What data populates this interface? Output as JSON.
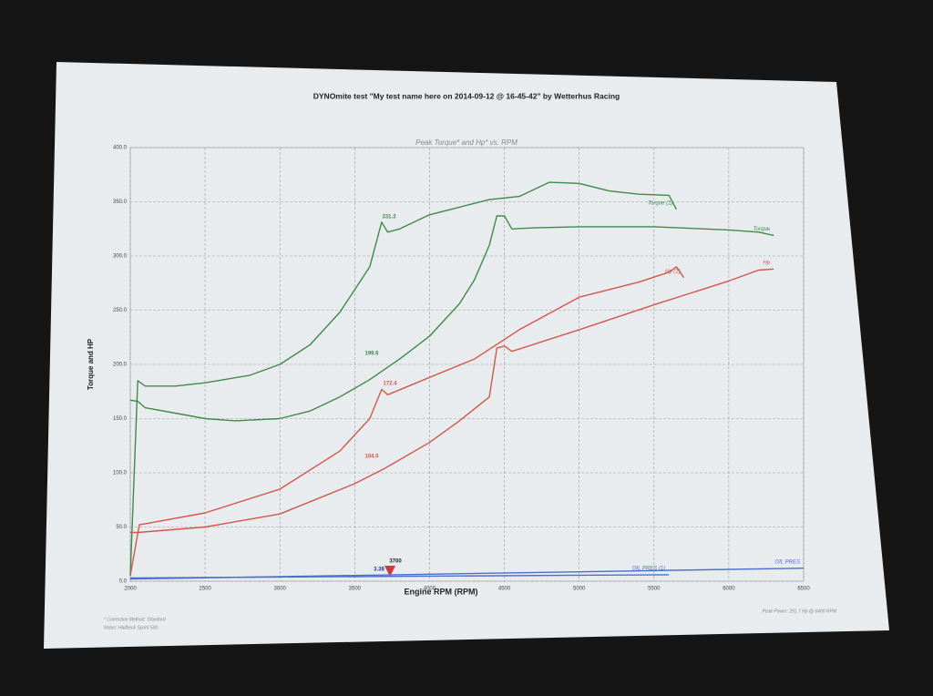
{
  "chart_data": {
    "type": "line",
    "title": "DYNOmite test \"My test name here on 2014-09-12 @ 16-45-42\" by Wetterhus Racing",
    "subtitle": "Peak Torque* and Hp* vs. RPM",
    "x_label": "Engine RPM (RPM)",
    "y_label": "Torque and HP",
    "xlim": [
      2000,
      6500
    ],
    "xticks": [
      2000,
      2500,
      3000,
      3500,
      4000,
      4500,
      5000,
      5500,
      6000,
      6500
    ],
    "ylim": [
      0,
      400
    ],
    "yticks": [
      {
        "value": 0,
        "label": "0.0"
      },
      {
        "value": 50,
        "label": "50.0"
      },
      {
        "value": 100,
        "label": "100.0"
      },
      {
        "value": 150,
        "label": "150.0"
      },
      {
        "value": 200,
        "label": "200.0"
      },
      {
        "value": 250,
        "label": "250.0"
      },
      {
        "value": 300,
        "label": "300.0"
      },
      {
        "value": 350,
        "label": "350.0"
      },
      {
        "value": 400,
        "label": "400.0"
      }
    ],
    "grid": true,
    "series": [
      {
        "name": "Torque (1)",
        "color": "#3f8a4a",
        "x": [
          2000,
          2050,
          2100,
          2300,
          2500,
          2800,
          3000,
          3200,
          3400,
          3600,
          3680,
          3720,
          3800,
          4000,
          4200,
          4400,
          4600,
          4800,
          5000,
          5200,
          5400,
          5600,
          5650
        ],
        "values": [
          5,
          185,
          180,
          180,
          183,
          190,
          200,
          218,
          248,
          290,
          331.3,
          322,
          325,
          338,
          345,
          352,
          355,
          368,
          367,
          360,
          357,
          356,
          343
        ]
      },
      {
        "name": "Torque",
        "color": "#3f8a4a",
        "x": [
          2000,
          2050,
          2100,
          2300,
          2500,
          2700,
          3000,
          3200,
          3400,
          3600,
          3800,
          4000,
          4200,
          4300,
          4400,
          4450,
          4500,
          4550,
          4700,
          5000,
          5500,
          6000,
          6200,
          6300
        ],
        "values": [
          167,
          166,
          160,
          155,
          150,
          148,
          150,
          157,
          170,
          186,
          205,
          226,
          256,
          278,
          310,
          337,
          337,
          325,
          326,
          327,
          327,
          324,
          322,
          319
        ]
      },
      {
        "name": "Hp (1)",
        "color": "#d2574a",
        "x": [
          2000,
          2060,
          2100,
          2500,
          3000,
          3400,
          3600,
          3680,
          3720,
          4000,
          4300,
          4600,
          5000,
          5400,
          5600,
          5650,
          5700
        ],
        "values": [
          5,
          52,
          53,
          63,
          85,
          120,
          150,
          177,
          172,
          188,
          205,
          232,
          262,
          276,
          285,
          290,
          280
        ]
      },
      {
        "name": "Hp",
        "color": "#d2574a",
        "x": [
          2000,
          2050,
          2500,
          3000,
          3500,
          3700,
          4000,
          4200,
          4400,
          4450,
          4500,
          4550,
          5000,
          5500,
          6000,
          6200,
          6300
        ],
        "values": [
          45,
          45,
          50,
          62,
          90,
          104,
          128,
          148,
          170,
          215,
          217,
          212,
          232,
          255,
          277,
          287,
          288
        ]
      },
      {
        "name": "OIL PRES (1)",
        "color": "#4a6fd0",
        "x": [
          2000,
          5600
        ],
        "values": [
          3,
          6
        ]
      },
      {
        "name": "OIL PRES",
        "color": "#4a6fd0",
        "x": [
          2000,
          6500
        ],
        "values": [
          2,
          12
        ]
      }
    ],
    "annotations": [
      "331.3",
      "199.6",
      "172.4",
      "104.0",
      "3700",
      "3.38"
    ],
    "footnotes": [
      "* Correction Method: Standard",
      "Notes: Hallbeck Sprint 500",
      "Peak Power: 291.7 Hp @ 6400 RPM"
    ]
  }
}
